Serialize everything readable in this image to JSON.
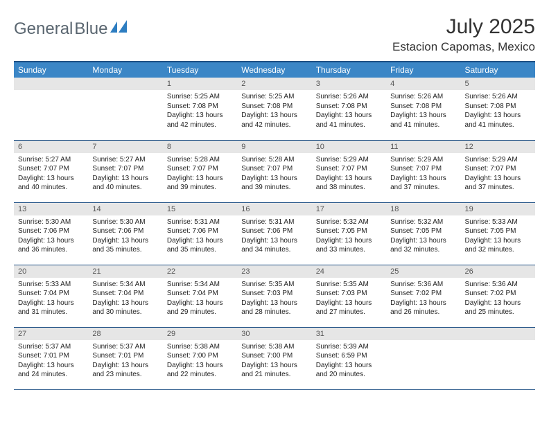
{
  "brand": {
    "name_part1": "General",
    "name_part2": "Blue"
  },
  "title": "July 2025",
  "location": "Estacion Capomas, Mexico",
  "colors": {
    "header_bg": "#3b86c6",
    "header_text": "#ffffff",
    "border_top": "#1d4f84",
    "daynum_bg": "#e6e6e6",
    "brand_text": "#5a6670",
    "brand_icon": "#2d7dc1"
  },
  "day_headers": [
    "Sunday",
    "Monday",
    "Tuesday",
    "Wednesday",
    "Thursday",
    "Friday",
    "Saturday"
  ],
  "weeks": [
    [
      {
        "num": "",
        "sunrise": "",
        "sunset": "",
        "daylight": ""
      },
      {
        "num": "",
        "sunrise": "",
        "sunset": "",
        "daylight": ""
      },
      {
        "num": "1",
        "sunrise": "Sunrise: 5:25 AM",
        "sunset": "Sunset: 7:08 PM",
        "daylight": "Daylight: 13 hours and 42 minutes."
      },
      {
        "num": "2",
        "sunrise": "Sunrise: 5:25 AM",
        "sunset": "Sunset: 7:08 PM",
        "daylight": "Daylight: 13 hours and 42 minutes."
      },
      {
        "num": "3",
        "sunrise": "Sunrise: 5:26 AM",
        "sunset": "Sunset: 7:08 PM",
        "daylight": "Daylight: 13 hours and 41 minutes."
      },
      {
        "num": "4",
        "sunrise": "Sunrise: 5:26 AM",
        "sunset": "Sunset: 7:08 PM",
        "daylight": "Daylight: 13 hours and 41 minutes."
      },
      {
        "num": "5",
        "sunrise": "Sunrise: 5:26 AM",
        "sunset": "Sunset: 7:08 PM",
        "daylight": "Daylight: 13 hours and 41 minutes."
      }
    ],
    [
      {
        "num": "6",
        "sunrise": "Sunrise: 5:27 AM",
        "sunset": "Sunset: 7:07 PM",
        "daylight": "Daylight: 13 hours and 40 minutes."
      },
      {
        "num": "7",
        "sunrise": "Sunrise: 5:27 AM",
        "sunset": "Sunset: 7:07 PM",
        "daylight": "Daylight: 13 hours and 40 minutes."
      },
      {
        "num": "8",
        "sunrise": "Sunrise: 5:28 AM",
        "sunset": "Sunset: 7:07 PM",
        "daylight": "Daylight: 13 hours and 39 minutes."
      },
      {
        "num": "9",
        "sunrise": "Sunrise: 5:28 AM",
        "sunset": "Sunset: 7:07 PM",
        "daylight": "Daylight: 13 hours and 39 minutes."
      },
      {
        "num": "10",
        "sunrise": "Sunrise: 5:29 AM",
        "sunset": "Sunset: 7:07 PM",
        "daylight": "Daylight: 13 hours and 38 minutes."
      },
      {
        "num": "11",
        "sunrise": "Sunrise: 5:29 AM",
        "sunset": "Sunset: 7:07 PM",
        "daylight": "Daylight: 13 hours and 37 minutes."
      },
      {
        "num": "12",
        "sunrise": "Sunrise: 5:29 AM",
        "sunset": "Sunset: 7:07 PM",
        "daylight": "Daylight: 13 hours and 37 minutes."
      }
    ],
    [
      {
        "num": "13",
        "sunrise": "Sunrise: 5:30 AM",
        "sunset": "Sunset: 7:06 PM",
        "daylight": "Daylight: 13 hours and 36 minutes."
      },
      {
        "num": "14",
        "sunrise": "Sunrise: 5:30 AM",
        "sunset": "Sunset: 7:06 PM",
        "daylight": "Daylight: 13 hours and 35 minutes."
      },
      {
        "num": "15",
        "sunrise": "Sunrise: 5:31 AM",
        "sunset": "Sunset: 7:06 PM",
        "daylight": "Daylight: 13 hours and 35 minutes."
      },
      {
        "num": "16",
        "sunrise": "Sunrise: 5:31 AM",
        "sunset": "Sunset: 7:06 PM",
        "daylight": "Daylight: 13 hours and 34 minutes."
      },
      {
        "num": "17",
        "sunrise": "Sunrise: 5:32 AM",
        "sunset": "Sunset: 7:05 PM",
        "daylight": "Daylight: 13 hours and 33 minutes."
      },
      {
        "num": "18",
        "sunrise": "Sunrise: 5:32 AM",
        "sunset": "Sunset: 7:05 PM",
        "daylight": "Daylight: 13 hours and 32 minutes."
      },
      {
        "num": "19",
        "sunrise": "Sunrise: 5:33 AM",
        "sunset": "Sunset: 7:05 PM",
        "daylight": "Daylight: 13 hours and 32 minutes."
      }
    ],
    [
      {
        "num": "20",
        "sunrise": "Sunrise: 5:33 AM",
        "sunset": "Sunset: 7:04 PM",
        "daylight": "Daylight: 13 hours and 31 minutes."
      },
      {
        "num": "21",
        "sunrise": "Sunrise: 5:34 AM",
        "sunset": "Sunset: 7:04 PM",
        "daylight": "Daylight: 13 hours and 30 minutes."
      },
      {
        "num": "22",
        "sunrise": "Sunrise: 5:34 AM",
        "sunset": "Sunset: 7:04 PM",
        "daylight": "Daylight: 13 hours and 29 minutes."
      },
      {
        "num": "23",
        "sunrise": "Sunrise: 5:35 AM",
        "sunset": "Sunset: 7:03 PM",
        "daylight": "Daylight: 13 hours and 28 minutes."
      },
      {
        "num": "24",
        "sunrise": "Sunrise: 5:35 AM",
        "sunset": "Sunset: 7:03 PM",
        "daylight": "Daylight: 13 hours and 27 minutes."
      },
      {
        "num": "25",
        "sunrise": "Sunrise: 5:36 AM",
        "sunset": "Sunset: 7:02 PM",
        "daylight": "Daylight: 13 hours and 26 minutes."
      },
      {
        "num": "26",
        "sunrise": "Sunrise: 5:36 AM",
        "sunset": "Sunset: 7:02 PM",
        "daylight": "Daylight: 13 hours and 25 minutes."
      }
    ],
    [
      {
        "num": "27",
        "sunrise": "Sunrise: 5:37 AM",
        "sunset": "Sunset: 7:01 PM",
        "daylight": "Daylight: 13 hours and 24 minutes."
      },
      {
        "num": "28",
        "sunrise": "Sunrise: 5:37 AM",
        "sunset": "Sunset: 7:01 PM",
        "daylight": "Daylight: 13 hours and 23 minutes."
      },
      {
        "num": "29",
        "sunrise": "Sunrise: 5:38 AM",
        "sunset": "Sunset: 7:00 PM",
        "daylight": "Daylight: 13 hours and 22 minutes."
      },
      {
        "num": "30",
        "sunrise": "Sunrise: 5:38 AM",
        "sunset": "Sunset: 7:00 PM",
        "daylight": "Daylight: 13 hours and 21 minutes."
      },
      {
        "num": "31",
        "sunrise": "Sunrise: 5:39 AM",
        "sunset": "Sunset: 6:59 PM",
        "daylight": "Daylight: 13 hours and 20 minutes."
      },
      {
        "num": "",
        "sunrise": "",
        "sunset": "",
        "daylight": ""
      },
      {
        "num": "",
        "sunrise": "",
        "sunset": "",
        "daylight": ""
      }
    ]
  ]
}
